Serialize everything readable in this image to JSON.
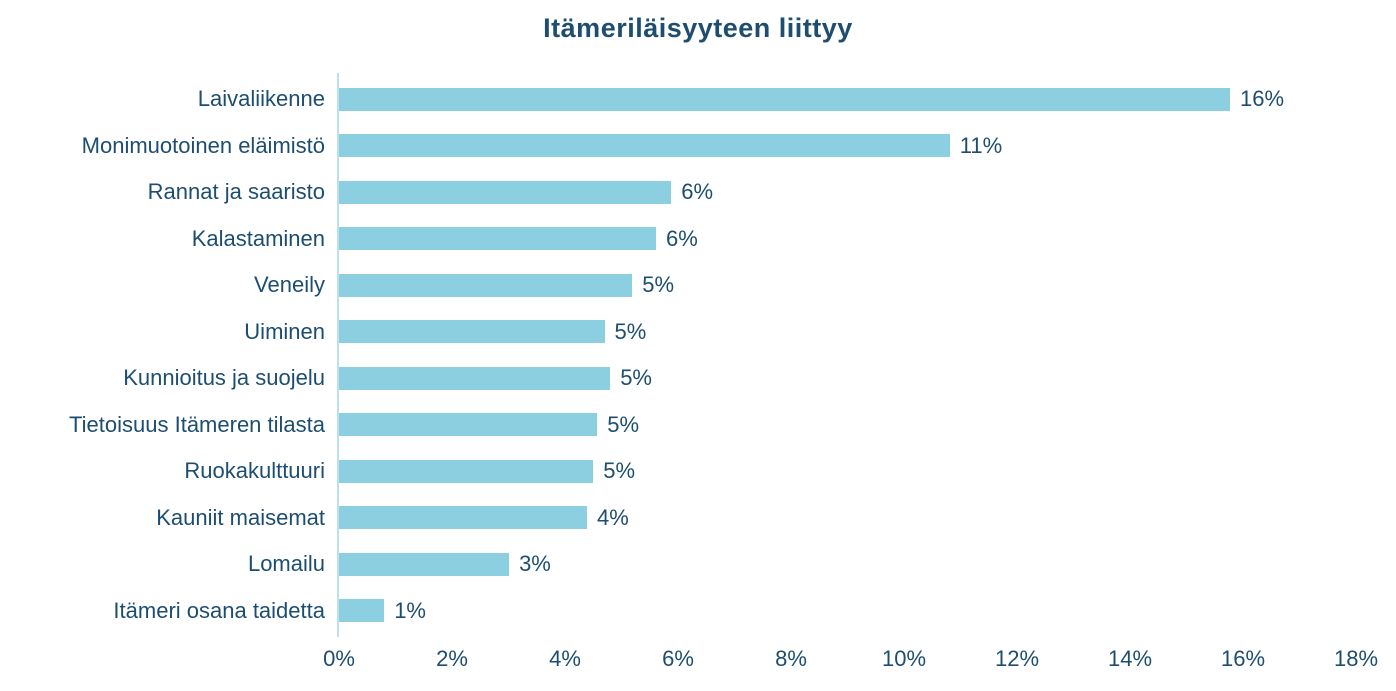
{
  "title": "Itämeriläisyyteen liittyy",
  "colors": {
    "bar_fill": "#8ccfe0",
    "text": "#1d4e70",
    "axis_line": "#bce0ee",
    "background": "#ffffff"
  },
  "chart_data": {
    "type": "bar",
    "orientation": "horizontal",
    "title": "Itämeriläisyyteen liittyy",
    "xlabel": "",
    "ylabel": "",
    "grid": false,
    "legend": false,
    "xlim": [
      0,
      18
    ],
    "x_ticks": [
      "0%",
      "2%",
      "4%",
      "6%",
      "8%",
      "10%",
      "12%",
      "14%",
      "16%",
      "18%"
    ],
    "categories": [
      "Laivaliikenne",
      "Monimuotoinen eläimistö",
      "Rannat ja saaristo",
      "Kalastaminen",
      "Veneily",
      "Uiminen",
      "Kunnioitus ja suojelu",
      "Tietoisuus Itämeren tilasta",
      "Ruokakulttuuri",
      "Kauniit maisemat",
      "Lomailu",
      "Itämeri osana taidetta"
    ],
    "values": [
      16,
      11,
      6,
      6,
      5,
      5,
      5,
      5,
      5,
      4,
      3,
      1
    ],
    "value_labels": [
      "16%",
      "11%",
      "6%",
      "6%",
      "5%",
      "5%",
      "5%",
      "5%",
      "5%",
      "4%",
      "3%",
      "1%"
    ],
    "values_precise": [
      15.77,
      10.81,
      5.88,
      5.61,
      5.19,
      4.7,
      4.8,
      4.57,
      4.5,
      4.39,
      3.01,
      0.8
    ]
  }
}
